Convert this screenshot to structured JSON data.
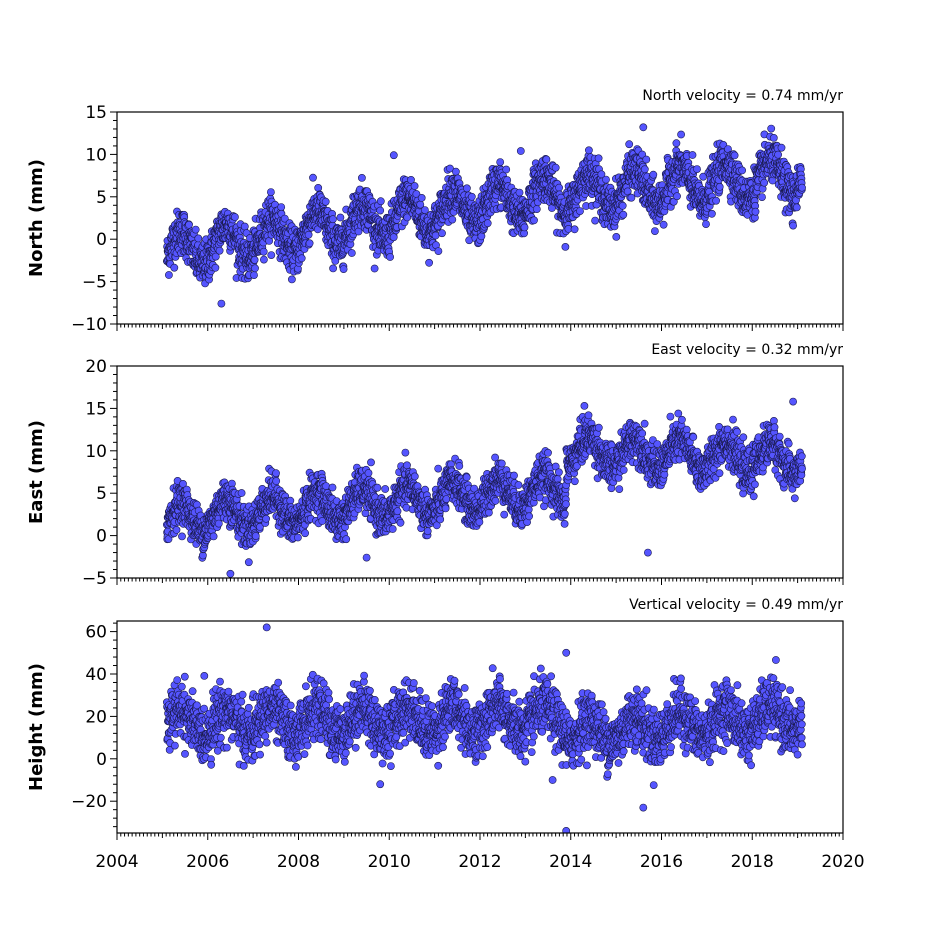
{
  "chart_data": [
    {
      "type": "scatter",
      "name": "north",
      "ylabel": "North (mm)",
      "annotation": "North velocity = 0.74 mm/yr",
      "velocity_mm_per_yr": 0.74,
      "xlim": [
        2004,
        2020
      ],
      "ylim": [
        -10,
        15
      ],
      "yticks": [
        -10,
        -5,
        0,
        5,
        10,
        15
      ],
      "xticks": [
        2004,
        2006,
        2008,
        2010,
        2012,
        2014,
        2016,
        2018,
        2020
      ],
      "color": "#5555ff",
      "time_span": [
        2005.1,
        2019.1
      ],
      "segments": [
        {
          "from": 2005.1,
          "to": 2013.0,
          "y_start": -1.5,
          "y_end": 4.8
        },
        {
          "from": 2013.0,
          "to": 2019.1,
          "y_start": 5.0,
          "y_end": 7.5
        }
      ],
      "annual_amplitude": 2.2,
      "scatter_sd": 1.3,
      "outliers": [
        {
          "x": 2015.6,
          "y": 13.2
        },
        {
          "x": 2010.1,
          "y": 9.9
        },
        {
          "x": 2006.3,
          "y": -7.6
        },
        {
          "x": 2012.9,
          "y": 10.4
        },
        {
          "x": 2018.9,
          "y": 1.6
        }
      ]
    },
    {
      "type": "scatter",
      "name": "east",
      "ylabel": "East (mm)",
      "annotation": "East velocity = 0.32 mm/yr",
      "velocity_mm_per_yr": 0.32,
      "xlim": [
        2004,
        2020
      ],
      "ylim": [
        -5,
        20
      ],
      "yticks": [
        -5,
        0,
        5,
        10,
        15,
        20
      ],
      "xticks": [
        2004,
        2006,
        2008,
        2010,
        2012,
        2014,
        2016,
        2018,
        2020
      ],
      "color": "#5555ff",
      "time_span": [
        2005.1,
        2019.1
      ],
      "segments": [
        {
          "from": 2005.1,
          "to": 2013.9,
          "y_start": 2.0,
          "y_end": 5.5
        },
        {
          "from": 2013.9,
          "to": 2019.1,
          "y_start": 10.0,
          "y_end": 9.0
        }
      ],
      "annual_amplitude": 1.8,
      "scatter_sd": 1.2,
      "outliers": [
        {
          "x": 2018.9,
          "y": 15.8
        },
        {
          "x": 2014.3,
          "y": 15.3
        },
        {
          "x": 2015.7,
          "y": -2.0
        },
        {
          "x": 2006.5,
          "y": -4.5
        },
        {
          "x": 2009.5,
          "y": -2.6
        }
      ]
    },
    {
      "type": "scatter",
      "name": "height",
      "ylabel": "Height (mm)",
      "annotation": "Vertical velocity = 0.49 mm/yr",
      "velocity_mm_per_yr": 0.49,
      "xlim": [
        2004,
        2020
      ],
      "ylim": [
        -35,
        65
      ],
      "yticks": [
        -20,
        0,
        20,
        40,
        60
      ],
      "xticks": [
        2004,
        2006,
        2008,
        2010,
        2012,
        2014,
        2016,
        2018,
        2020
      ],
      "color": "#5555ff",
      "time_span": [
        2005.1,
        2019.1
      ],
      "segments": [
        {
          "from": 2005.1,
          "to": 2013.9,
          "y_start": 17.0,
          "y_end": 19.0
        },
        {
          "from": 2013.9,
          "to": 2019.1,
          "y_start": 12.0,
          "y_end": 20.0
        }
      ],
      "annual_amplitude": 6.0,
      "scatter_sd": 6.5,
      "outliers": [
        {
          "x": 2007.3,
          "y": 62.0
        },
        {
          "x": 2013.9,
          "y": 50.0
        },
        {
          "x": 2013.9,
          "y": -34.0
        },
        {
          "x": 2015.6,
          "y": -23.0
        },
        {
          "x": 2009.8,
          "y": -12.0
        },
        {
          "x": 2013.6,
          "y": -10.0
        }
      ]
    }
  ]
}
